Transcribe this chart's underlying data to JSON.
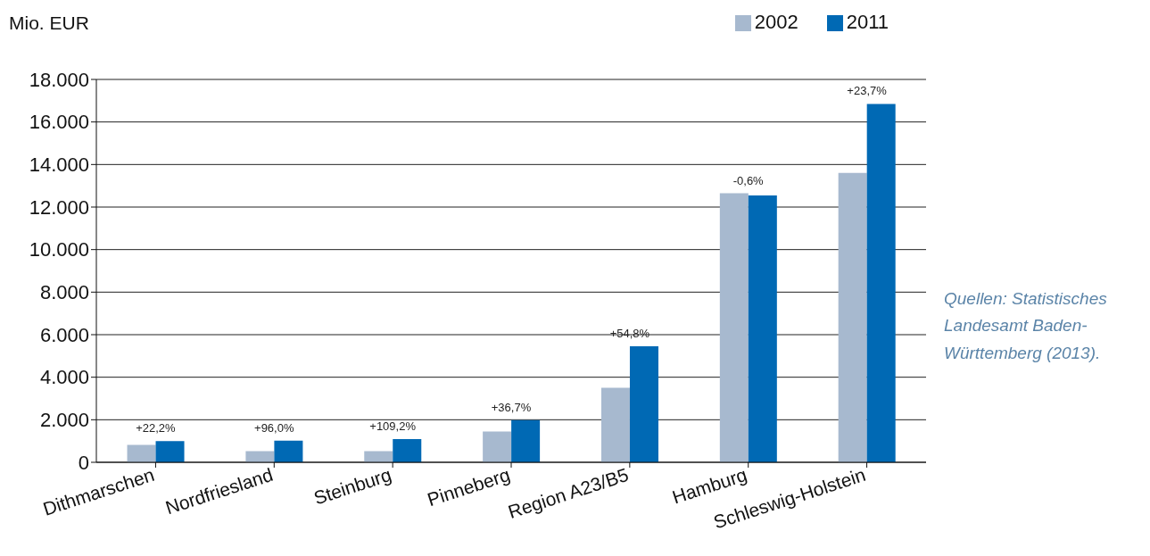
{
  "chart_data": {
    "type": "bar",
    "ylabel": "Mio. EUR",
    "categories": [
      "Dithmarschen",
      "Nordfriesland",
      "Steinburg",
      "Pinneberg",
      "Region A23/B5",
      "Hamburg",
      "Schleswig-Holstein"
    ],
    "series": [
      {
        "name": "2002",
        "color": "#a7b9cf",
        "values": [
          820,
          520,
          520,
          1450,
          3500,
          12650,
          13600
        ]
      },
      {
        "name": "2011",
        "color": "#0069b4",
        "values": [
          1000,
          1020,
          1090,
          1980,
          5450,
          12550,
          16850
        ]
      }
    ],
    "ylim": [
      0,
      18000
    ],
    "yticks": [
      0,
      {
        "value": 2000,
        "label": "2.000"
      },
      {
        "value": 4000,
        "label": "4.000"
      },
      {
        "value": 6000,
        "label": "6.000"
      },
      {
        "value": 8000,
        "label": "8.000"
      },
      {
        "value": 10000,
        "label": "10.000"
      },
      {
        "value": 12000,
        "label": "12.000"
      },
      {
        "value": 14000,
        "label": "14.000"
      },
      {
        "value": 16000,
        "label": "16.000"
      },
      {
        "value": 18000,
        "label": "18.000"
      }
    ],
    "grid": "y",
    "legend": "top right",
    "annotations": [
      {
        "text": "+22,2%",
        "x": "Dithmarschen",
        "y": 1000
      },
      {
        "text": "+96,0%",
        "x": "Nordfriesland",
        "y": 1020
      },
      {
        "text": "+109,2%",
        "x": "Steinburg",
        "y": 1090
      },
      {
        "text": "+36,7%",
        "x": "Pinneberg",
        "y": 1980
      },
      {
        "text": "+54,8%",
        "x": "Region A23/B5",
        "y": 5450
      },
      {
        "text": "-0,6%",
        "x": "Hamburg",
        "y": 12650
      },
      {
        "text": "+23,7%",
        "x": "Schleswig-Holstein",
        "y": 16850
      },
      "Quellen: Statistisches Landesamt Baden-Württemberg (2013)."
    ]
  }
}
